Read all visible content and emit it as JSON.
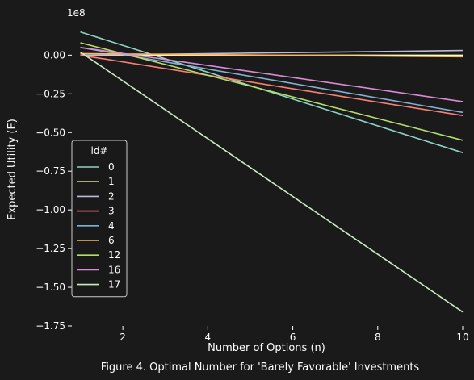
{
  "chart_data": {
    "type": "line",
    "caption": "Figure 4. Optimal Number for 'Barely Favorable' Investments",
    "xlabel": "Number of Options (n)",
    "ylabel": "Expected Utility (E)",
    "offset_label": "1e8",
    "xlim": [
      0.8,
      10.0
    ],
    "ylim": [
      -1.75,
      0.2
    ],
    "x_ticks": [
      2,
      4,
      6,
      8,
      10
    ],
    "y_ticks": [
      0.0,
      -0.25,
      -0.5,
      -0.75,
      -1.0,
      -1.25,
      -1.5,
      -1.75
    ],
    "y_tick_labels": [
      "0.00",
      "−0.25",
      "−0.50",
      "−0.75",
      "−1.00",
      "−1.25",
      "−1.50",
      "−1.75"
    ],
    "x_tick_labels": [
      "2",
      "4",
      "6",
      "8",
      "10"
    ],
    "legend": {
      "title": "id#",
      "placement": "lower-left"
    },
    "series": [
      {
        "name": "0",
        "color": "#8dd3c7",
        "x": [
          1,
          10
        ],
        "y": [
          0.15,
          -0.63
        ]
      },
      {
        "name": "1",
        "color": "#ffffb3",
        "x": [
          1,
          10
        ],
        "y": [
          0.0,
          0.0
        ]
      },
      {
        "name": "2",
        "color": "#bebada",
        "x": [
          1,
          10
        ],
        "y": [
          0.0,
          0.03
        ]
      },
      {
        "name": "3",
        "color": "#fb8072",
        "x": [
          1,
          10
        ],
        "y": [
          0.0,
          -0.39
        ]
      },
      {
        "name": "4",
        "color": "#80b1d3",
        "x": [
          1,
          10
        ],
        "y": [
          0.05,
          -0.37
        ]
      },
      {
        "name": "6",
        "color": "#fdb462",
        "x": [
          1,
          10
        ],
        "y": [
          0.01,
          -0.01
        ]
      },
      {
        "name": "12",
        "color": "#b3de69",
        "x": [
          1,
          10
        ],
        "y": [
          0.08,
          -0.55
        ]
      },
      {
        "name": "16",
        "color": "#d98cd6",
        "x": [
          1,
          10
        ],
        "y": [
          0.05,
          -0.3
        ]
      },
      {
        "name": "17",
        "color": "#ccebc5",
        "x": [
          1,
          10
        ],
        "y": [
          0.02,
          -1.66
        ]
      }
    ]
  }
}
